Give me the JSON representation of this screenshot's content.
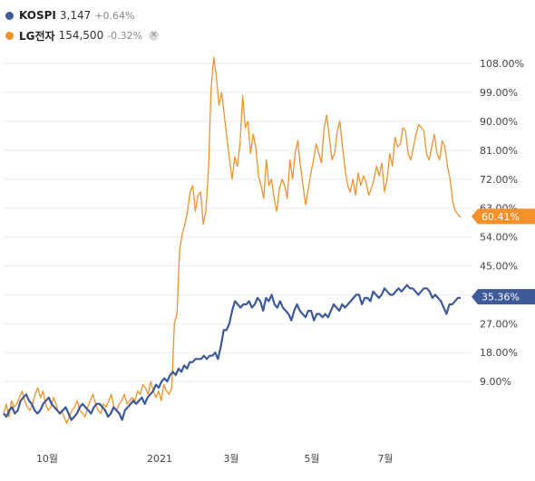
{
  "legend": [
    {
      "name": "KOSPI",
      "price": "3,147",
      "change": "+0.64%",
      "color": "#3e5a99"
    },
    {
      "name": "LG전자",
      "price": "154,500",
      "change": "-0.32%",
      "color": "#f4912b",
      "close_icon": "close-icon"
    }
  ],
  "chart_data": {
    "type": "line",
    "title": "",
    "xlabel": "",
    "ylabel": "",
    "x_tick_labels": [
      "10월",
      "2021",
      "3월",
      "5월",
      "7월"
    ],
    "y_ticks": [
      "9.00%",
      "18.00%",
      "27.00%",
      "36.00%",
      "45.00%",
      "54.00%",
      "63.00%",
      "72.00%",
      "81.00%",
      "90.00%",
      "99.00%",
      "108.00%"
    ],
    "ylim": [
      0,
      111
    ],
    "grid": true,
    "legend_position": "top-left",
    "series": [
      {
        "name": "KOSPI",
        "color": "#3e5a99",
        "last_label": "35.36%",
        "values": [
          -1,
          -2,
          0,
          1,
          -1,
          0,
          3,
          4,
          5,
          3,
          2,
          0,
          -1,
          0,
          2,
          3,
          4,
          2,
          1,
          0,
          -1,
          0,
          1,
          -1,
          -3,
          -2,
          -1,
          1,
          2,
          1,
          0,
          -1,
          1,
          2,
          2,
          1,
          0,
          -2,
          -1,
          1,
          0,
          -1,
          -3,
          0,
          1,
          2,
          3,
          2,
          3,
          4,
          2,
          4,
          5,
          6,
          8,
          7,
          9,
          10,
          9,
          11,
          12,
          11,
          13,
          12,
          14,
          13,
          15,
          15,
          16,
          16,
          16,
          17,
          16,
          17,
          17,
          18,
          16,
          20,
          25,
          25,
          27,
          31,
          34,
          33,
          32,
          33,
          33,
          34,
          32,
          33,
          35,
          34,
          31,
          35,
          34,
          36,
          33,
          32,
          34,
          32,
          31,
          30,
          28,
          31,
          33,
          31,
          30,
          29,
          31,
          31,
          28,
          30,
          30,
          29,
          30,
          29,
          31,
          33,
          32,
          31,
          33,
          32,
          33,
          34,
          35,
          36,
          36,
          33,
          35,
          35,
          34,
          37,
          36,
          35,
          36,
          38,
          37,
          36,
          36,
          37,
          38,
          37,
          38,
          39,
          38,
          38,
          37,
          36,
          37,
          38,
          38,
          37,
          35,
          36,
          35,
          34,
          32,
          30,
          33,
          33,
          34,
          35,
          35
        ]
      },
      {
        "name": "LG전자",
        "color": "#f4912b",
        "last_label": "60.41%",
        "values": [
          -1,
          2,
          -2,
          3,
          1,
          2,
          4,
          6,
          3,
          1,
          0,
          2,
          5,
          7,
          4,
          6,
          2,
          0,
          1,
          4,
          2,
          -1,
          0,
          -2,
          -4,
          -2,
          0,
          1,
          3,
          0,
          -1,
          -2,
          1,
          3,
          5,
          2,
          0,
          -1,
          2,
          1,
          3,
          5,
          1,
          0,
          2,
          3,
          5,
          2,
          3,
          4,
          3,
          6,
          5,
          8,
          7,
          5,
          9,
          6,
          4,
          6,
          3,
          8,
          6,
          5,
          7,
          27,
          30,
          50,
          55,
          58,
          62,
          68,
          70,
          62,
          67,
          68,
          58,
          62,
          75,
          100,
          110,
          104,
          95,
          99,
          92,
          85,
          78,
          72,
          79,
          76,
          83,
          98,
          88,
          90,
          80,
          86,
          82,
          73,
          70,
          66,
          78,
          70,
          72,
          66,
          62,
          69,
          72,
          70,
          66,
          78,
          72,
          80,
          84,
          76,
          70,
          64,
          69,
          74,
          78,
          83,
          80,
          77,
          88,
          92,
          85,
          78,
          80,
          87,
          90,
          82,
          75,
          70,
          68,
          72,
          67,
          74,
          70,
          73,
          71,
          67,
          69,
          72,
          76,
          73,
          77,
          68,
          72,
          80,
          76,
          85,
          82,
          83,
          88,
          87,
          80,
          78,
          82,
          86,
          89,
          88,
          87,
          80,
          78,
          82,
          86,
          80,
          78,
          84,
          82,
          76,
          72,
          65,
          62,
          61,
          60
        ]
      }
    ]
  }
}
